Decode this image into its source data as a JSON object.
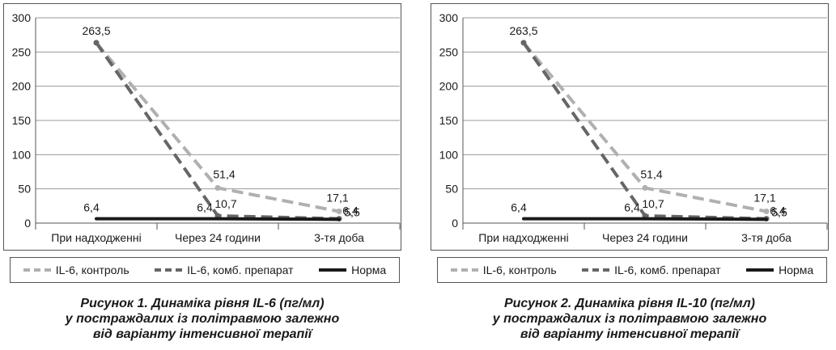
{
  "colors": {
    "control": "#b0b0b0",
    "combined": "#666666",
    "norm": "#1a1a1a"
  },
  "chart_data": [
    {
      "type": "line",
      "categories": [
        "При надходженні",
        "Через 24 години",
        "3-тя доба"
      ],
      "ylim": [
        0,
        300
      ],
      "yticks": [
        "0",
        "50",
        "100",
        "150",
        "200",
        "250",
        "300"
      ],
      "grid": true,
      "legend_placement": "bottom",
      "series": [
        {
          "name": "IL-6, контроль",
          "key": "control",
          "values": [
            263.5,
            51.4,
            17.1
          ],
          "labels": [
            "263,5",
            "51,4",
            "17,1"
          ]
        },
        {
          "name": "IL-6, комб. препарат",
          "key": "combined",
          "values": [
            263.5,
            10.7,
            6.4
          ],
          "labels": [
            "",
            "10,7",
            "6,4"
          ]
        },
        {
          "name": "Норма",
          "key": "norm",
          "values": [
            6.4,
            6.4,
            5.5
          ],
          "labels": [
            "6,4",
            "6,4",
            "5,5"
          ]
        }
      ],
      "caption": [
        "Рисунок 1.  Динаміка рівня IL-6 (пг/мл)",
        "у постраждалих із політравмою залежно",
        "від варіанту інтенсивної терапії"
      ]
    },
    {
      "type": "line",
      "categories": [
        "При надходженні",
        "Через 24 години",
        "3-тя доба"
      ],
      "ylim": [
        0,
        300
      ],
      "yticks": [
        "0",
        "50",
        "100",
        "150",
        "200",
        "250",
        "300"
      ],
      "grid": true,
      "legend_placement": "bottom",
      "series": [
        {
          "name": "IL-6, контроль",
          "key": "control",
          "values": [
            263.5,
            51.4,
            17.1
          ],
          "labels": [
            "263,5",
            "51,4",
            "17,1"
          ]
        },
        {
          "name": "IL-6, комб. препарат",
          "key": "combined",
          "values": [
            263.5,
            10.7,
            6.4
          ],
          "labels": [
            "",
            "10,7",
            "6,4"
          ]
        },
        {
          "name": "Норма",
          "key": "norm",
          "values": [
            6.4,
            6.4,
            5.5
          ],
          "labels": [
            "6,4",
            "6,4",
            "5,5"
          ]
        }
      ],
      "caption": [
        "Рисунок 2.  Динаміка рівня IL-10 (пг/мл)",
        "у постраждалих із політравмою залежно",
        "від варіанту інтенсивної терапії"
      ]
    }
  ]
}
